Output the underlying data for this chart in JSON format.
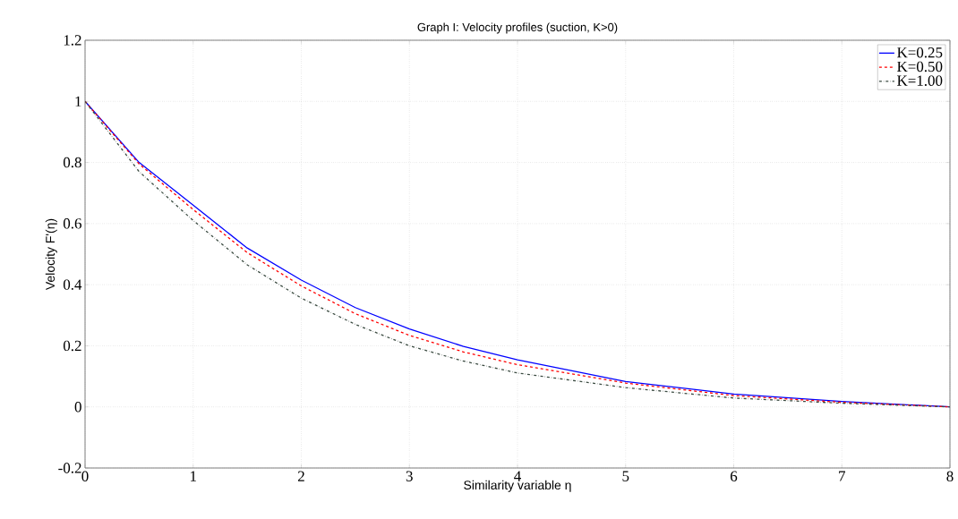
{
  "chart_data": {
    "type": "line",
    "title": "Graph I: Velocity profiles (suction, K>0)",
    "xlabel": "Similarity variable η",
    "ylabel": "Velocity F'(η)",
    "x": [
      0,
      0.5,
      1,
      1.5,
      2,
      2.5,
      3,
      3.5,
      4,
      5,
      6,
      7,
      8
    ],
    "series": [
      {
        "name": "K=0.25",
        "color": "#0000ff",
        "line_style": "solid",
        "values": [
          1,
          0.8,
          0.66,
          0.52,
          0.415,
          0.325,
          0.255,
          0.198,
          0.154,
          0.083,
          0.042,
          0.018,
          0
        ]
      },
      {
        "name": "K=0.50",
        "color": "#ff0000",
        "line_style": "dashed",
        "values": [
          1,
          0.795,
          0.646,
          0.505,
          0.396,
          0.305,
          0.234,
          0.18,
          0.138,
          0.078,
          0.037,
          0.015,
          0
        ]
      },
      {
        "name": "K=1.00",
        "color": "#3a4a40",
        "line_style": "dashdot",
        "values": [
          1,
          0.77,
          0.61,
          0.465,
          0.356,
          0.27,
          0.2,
          0.15,
          0.111,
          0.063,
          0.029,
          0.012,
          0
        ]
      }
    ],
    "xlim": [
      0,
      8
    ],
    "xticks": [
      0,
      1,
      2,
      3,
      4,
      5,
      6,
      7,
      8
    ],
    "ylim": [
      -0.2,
      1.2
    ],
    "yticks": [
      -0.2,
      0,
      0.2,
      0.4,
      0.6,
      0.8,
      1,
      1.2
    ],
    "grid": true,
    "legend": "top right",
    "marker": "none"
  }
}
